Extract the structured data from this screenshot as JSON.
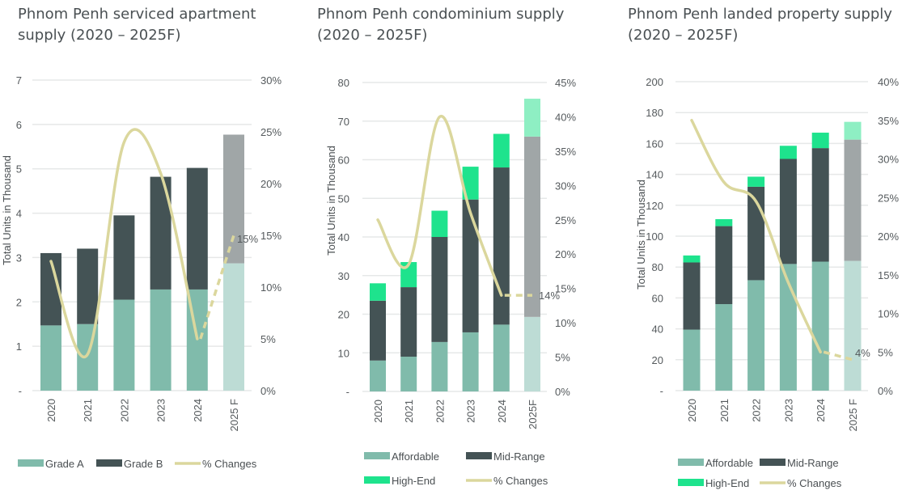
{
  "colors": {
    "grade_a": "#80bbab",
    "grade_b": "#445355",
    "affordable": "#80bbab",
    "mid_range": "#445355",
    "high_end": "#1ee38d",
    "forecast_low": "#bddcd5",
    "forecast_mid": "#a0a6a7",
    "forecast_high": "#8eefc3",
    "changes_line": "#dbd79d",
    "grid": "#e6e8e8"
  },
  "chart_data": [
    {
      "type": "bar",
      "stacked": true,
      "title": "Phnom Penh serviced apartment supply (2020 – 2025F)",
      "ylabel": "Total Units in Thousand",
      "ylim": [
        0,
        7
      ],
      "yticks": [
        "-",
        "1",
        "2",
        "3",
        "4",
        "5",
        "6",
        "7"
      ],
      "y2lim": [
        0,
        30
      ],
      "y2ticks": [
        "0%",
        "5%",
        "10%",
        "15%",
        "20%",
        "25%",
        "30%"
      ],
      "categories": [
        "2020",
        "2021",
        "2022",
        "2023",
        "2024",
        "2025 F"
      ],
      "series": [
        {
          "name": "Grade A",
          "values": [
            1.47,
            1.5,
            2.05,
            2.28,
            2.28,
            2.87
          ]
        },
        {
          "name": "Grade B",
          "values": [
            1.63,
            1.7,
            1.9,
            2.54,
            2.74,
            2.9
          ]
        }
      ],
      "line": {
        "name": "% Changes",
        "values": [
          12.5,
          3.5,
          24,
          21,
          5,
          15
        ],
        "forecast_from": 4
      },
      "annotation": "15%",
      "legend": [
        "Grade A",
        "Grade B",
        "% Changes"
      ],
      "legend_position": "bottom",
      "grid": true
    },
    {
      "type": "bar",
      "stacked": true,
      "title": "Phnom Penh condominium supply (2020 – 2025F)",
      "ylabel": "Total Units in Thousand",
      "ylim": [
        0,
        80
      ],
      "yticks": [
        "-",
        "10",
        "20",
        "30",
        "40",
        "50",
        "60",
        "70",
        "80"
      ],
      "y2lim": [
        0,
        45
      ],
      "y2ticks": [
        "0%",
        "5%",
        "10%",
        "15%",
        "20%",
        "25%",
        "30%",
        "35%",
        "40%",
        "45%"
      ],
      "categories": [
        "2020",
        "2021",
        "2022",
        "2023",
        "2024",
        "2025F"
      ],
      "series": [
        {
          "name": "Affordable",
          "values": [
            8,
            9,
            12.8,
            15.3,
            17.3,
            19.3
          ]
        },
        {
          "name": "Mid-Range",
          "values": [
            15.5,
            18,
            27.2,
            34.4,
            40.7,
            46.7
          ]
        },
        {
          "name": "High-End",
          "values": [
            4.5,
            6.5,
            6.8,
            8.5,
            8.7,
            9.8
          ]
        }
      ],
      "line": {
        "name": "% Changes",
        "values": [
          25,
          18.5,
          40,
          26,
          14,
          14
        ],
        "forecast_from": 4
      },
      "annotation": "14%",
      "legend": [
        "Affordable",
        "Mid-Range",
        "High-End",
        "% Changes"
      ],
      "legend_position": "bottom",
      "grid": true
    },
    {
      "type": "bar",
      "stacked": true,
      "title": "Phnom Penh landed property supply (2020 – 2025F)",
      "ylabel": "Total Units in Thousand",
      "ylim": [
        0,
        200
      ],
      "yticks": [
        "-",
        "20",
        "40",
        "60",
        "80",
        "100",
        "120",
        "140",
        "160",
        "180",
        "200"
      ],
      "y2lim": [
        0,
        40
      ],
      "y2ticks": [
        "0%",
        "5%",
        "10%",
        "15%",
        "20%",
        "25%",
        "30%",
        "35%",
        "40%"
      ],
      "categories": [
        "2020",
        "2021",
        "2022",
        "2023",
        "2024",
        "2025 F"
      ],
      "series": [
        {
          "name": "Affordable",
          "values": [
            39.5,
            56,
            71.5,
            82,
            83.5,
            84
          ]
        },
        {
          "name": "Mid-Range",
          "values": [
            43.5,
            50.5,
            60.5,
            68,
            73.5,
            78.5
          ]
        },
        {
          "name": "High-End",
          "values": [
            4.5,
            4.5,
            6.5,
            8.5,
            10,
            11.5
          ]
        }
      ],
      "line": {
        "name": "% Changes",
        "values": [
          35,
          27,
          24.5,
          14,
          5,
          4
        ],
        "forecast_from": 4
      },
      "annotation": "4%",
      "legend": [
        "Affordable",
        "Mid-Range",
        "High-End",
        "% Changes"
      ],
      "legend_position": "bottom",
      "grid": true
    }
  ]
}
